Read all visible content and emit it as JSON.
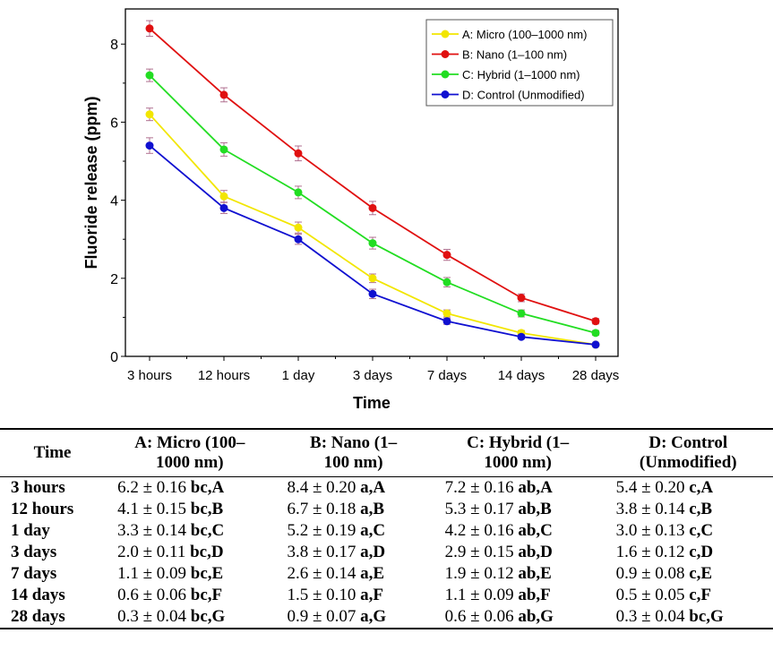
{
  "chart_data": {
    "type": "line",
    "title": "",
    "xlabel": "Time",
    "ylabel": "Fluoride release (ppm)",
    "categories": [
      "3 hours",
      "12 hours",
      "1 day",
      "3 days",
      "7 days",
      "14 days",
      "28 days"
    ],
    "ylim": [
      0,
      8.9
    ],
    "yticks": [
      0,
      2,
      4,
      6,
      8
    ],
    "grid": false,
    "legend_position": "top-right",
    "series": [
      {
        "name": "A: Micro (100–1000 nm)",
        "color": "#f2e600",
        "values": [
          6.2,
          4.1,
          3.3,
          2.0,
          1.1,
          0.6,
          0.3
        ],
        "errors": [
          0.16,
          0.15,
          0.14,
          0.11,
          0.09,
          0.06,
          0.04
        ]
      },
      {
        "name": "B: Nano (1–100 nm)",
        "color": "#e01010",
        "values": [
          8.4,
          6.7,
          5.2,
          3.8,
          2.6,
          1.5,
          0.9
        ],
        "errors": [
          0.2,
          0.18,
          0.19,
          0.17,
          0.14,
          0.1,
          0.07
        ]
      },
      {
        "name": "C: Hybrid (1–1000 nm)",
        "color": "#22dd22",
        "values": [
          7.2,
          5.3,
          4.2,
          2.9,
          1.9,
          1.1,
          0.6
        ],
        "errors": [
          0.16,
          0.17,
          0.16,
          0.15,
          0.12,
          0.09,
          0.06
        ]
      },
      {
        "name": "D: Control (Unmodified)",
        "color": "#1010d0",
        "values": [
          5.4,
          3.8,
          3.0,
          1.6,
          0.9,
          0.5,
          0.3
        ],
        "errors": [
          0.2,
          0.14,
          0.13,
          0.12,
          0.08,
          0.05,
          0.04
        ]
      }
    ]
  },
  "table": {
    "headers": [
      [
        "Time"
      ],
      [
        "A: Micro (100–",
        "1000 nm)"
      ],
      [
        "B: Nano (1–",
        "100 nm)"
      ],
      [
        "C: Hybrid (1–",
        "1000 nm)"
      ],
      [
        "D: Control",
        "(Unmodified)"
      ]
    ],
    "rows": [
      {
        "time": "3 hours",
        "cells": [
          {
            "v": "6.2 ± 0.16",
            "l": "bc,A"
          },
          {
            "v": "8.4 ± 0.20",
            "l": "a,A"
          },
          {
            "v": "7.2 ± 0.16",
            "l": "ab,A"
          },
          {
            "v": "5.4 ± 0.20",
            "l": "c,A"
          }
        ]
      },
      {
        "time": "12 hours",
        "cells": [
          {
            "v": "4.1 ± 0.15",
            "l": "bc,B"
          },
          {
            "v": "6.7 ± 0.18",
            "l": "a,B"
          },
          {
            "v": "5.3 ± 0.17",
            "l": "ab,B"
          },
          {
            "v": "3.8 ± 0.14",
            "l": "c,B"
          }
        ]
      },
      {
        "time": "1 day",
        "cells": [
          {
            "v": "3.3 ± 0.14",
            "l": "bc,C"
          },
          {
            "v": "5.2 ± 0.19",
            "l": "a,C"
          },
          {
            "v": "4.2 ± 0.16",
            "l": "ab,C"
          },
          {
            "v": "3.0 ± 0.13",
            "l": "c,C"
          }
        ]
      },
      {
        "time": "3 days",
        "cells": [
          {
            "v": "2.0 ± 0.11",
            "l": "bc,D"
          },
          {
            "v": "3.8 ± 0.17",
            "l": "a,D"
          },
          {
            "v": "2.9 ± 0.15",
            "l": "ab,D"
          },
          {
            "v": "1.6 ± 0.12",
            "l": "c,D"
          }
        ]
      },
      {
        "time": "7 days",
        "cells": [
          {
            "v": "1.1 ± 0.09",
            "l": "bc,E"
          },
          {
            "v": "2.6 ± 0.14",
            "l": "a,E"
          },
          {
            "v": "1.9 ± 0.12",
            "l": "ab,E"
          },
          {
            "v": "0.9 ± 0.08",
            "l": "c,E"
          }
        ]
      },
      {
        "time": "14 days",
        "cells": [
          {
            "v": "0.6 ± 0.06",
            "l": "bc,F"
          },
          {
            "v": "1.5 ± 0.10",
            "l": "a,F"
          },
          {
            "v": "1.1 ± 0.09",
            "l": "ab,F"
          },
          {
            "v": "0.5 ± 0.05",
            "l": "c,F"
          }
        ]
      },
      {
        "time": "28 days",
        "cells": [
          {
            "v": "0.3 ± 0.04",
            "l": "bc,G"
          },
          {
            "v": "0.9 ± 0.07",
            "l": "a,G"
          },
          {
            "v": "0.6 ± 0.06",
            "l": "ab,G"
          },
          {
            "v": "0.3 ± 0.04",
            "l": "bc,G"
          }
        ]
      }
    ]
  }
}
